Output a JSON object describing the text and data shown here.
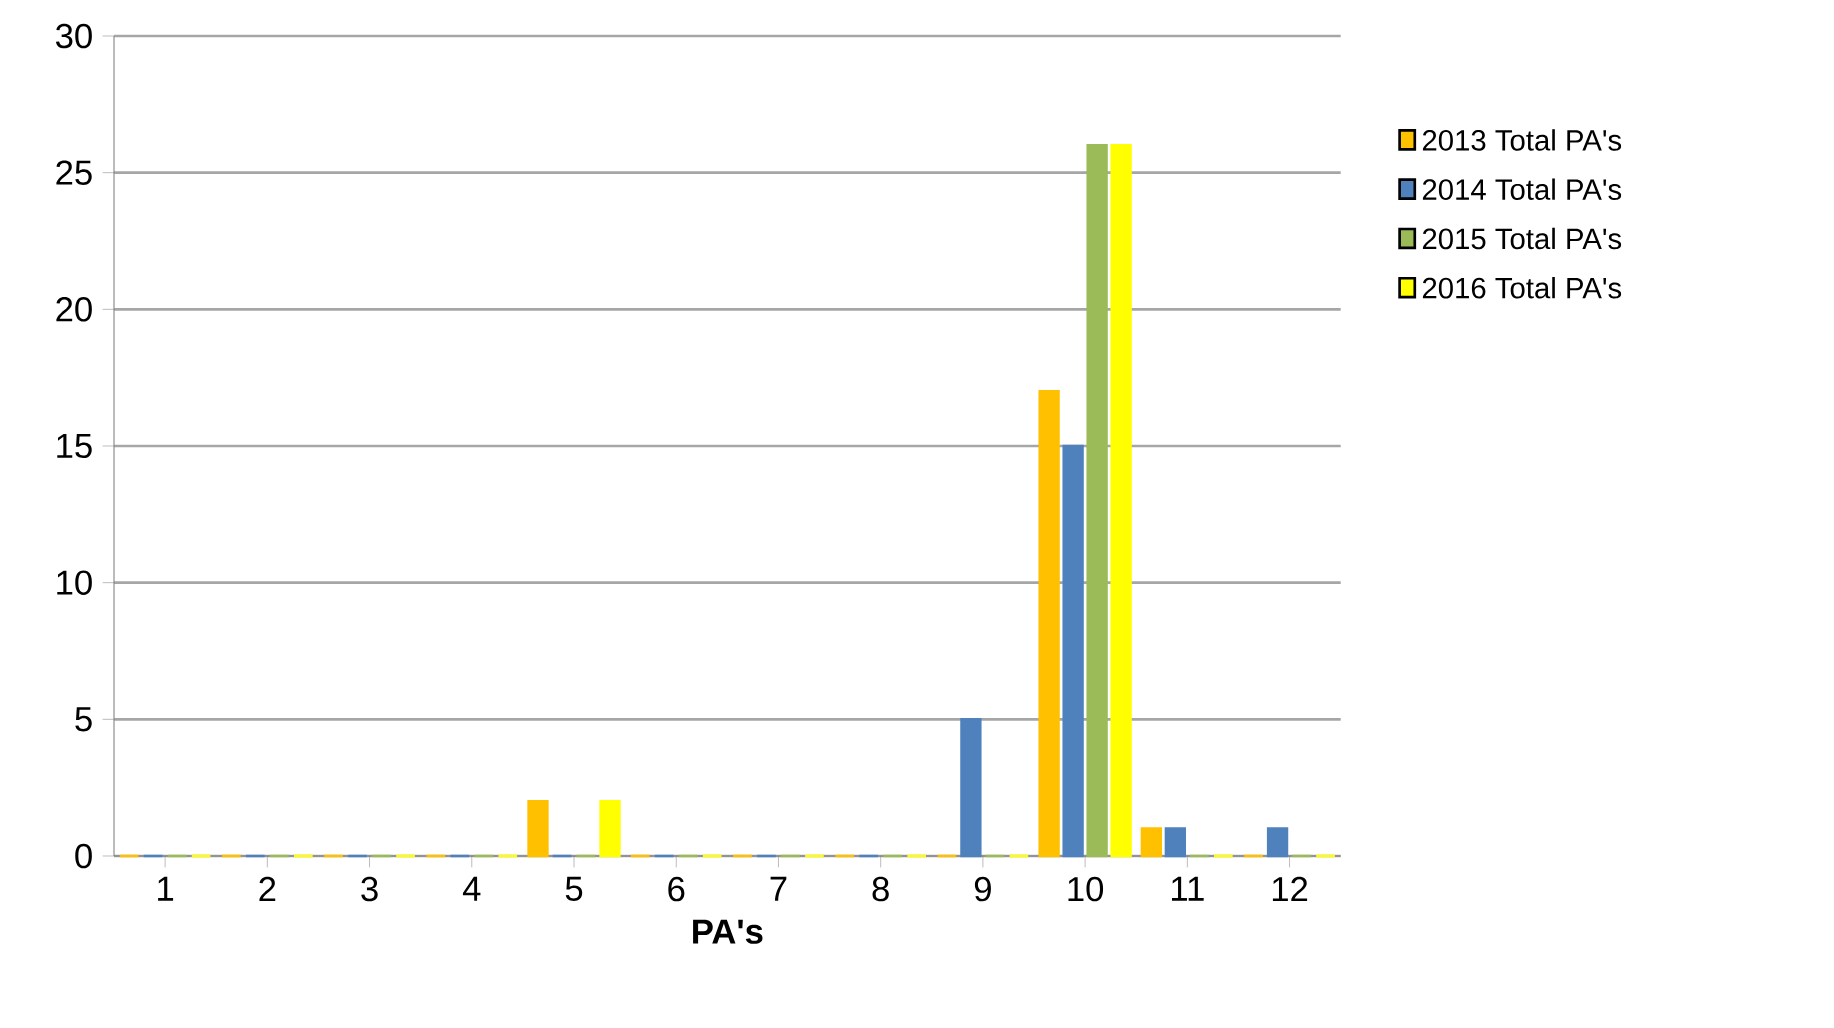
{
  "chart_data": {
    "type": "bar",
    "xlabel": "PA's",
    "categories": [
      "1",
      "2",
      "3",
      "4",
      "5",
      "6",
      "7",
      "8",
      "9",
      "10",
      "11",
      "12"
    ],
    "series": [
      {
        "name": "2013 Total PA's",
        "color": "#ffc000",
        "values": [
          0,
          0,
          0,
          0,
          2,
          0,
          0,
          0,
          0,
          17,
          1,
          0
        ]
      },
      {
        "name": "2014 Total PA's",
        "color": "#4f81bd",
        "values": [
          0,
          0,
          0,
          0,
          0,
          0,
          0,
          0,
          5,
          15,
          1,
          1
        ]
      },
      {
        "name": "2015 Total PA's",
        "color": "#9bbb59",
        "values": [
          0,
          0,
          0,
          0,
          0,
          0,
          0,
          0,
          0,
          26,
          0,
          0
        ]
      },
      {
        "name": "2016 Total PA's",
        "color": "#ffff00",
        "values": [
          0,
          0,
          0,
          0,
          2,
          0,
          0,
          0,
          0,
          26,
          0,
          0
        ]
      }
    ],
    "ylim": [
      0,
      30
    ],
    "yticks": [
      0,
      5,
      10,
      15,
      20,
      25,
      30
    ],
    "grid": "y",
    "legend": "right"
  }
}
